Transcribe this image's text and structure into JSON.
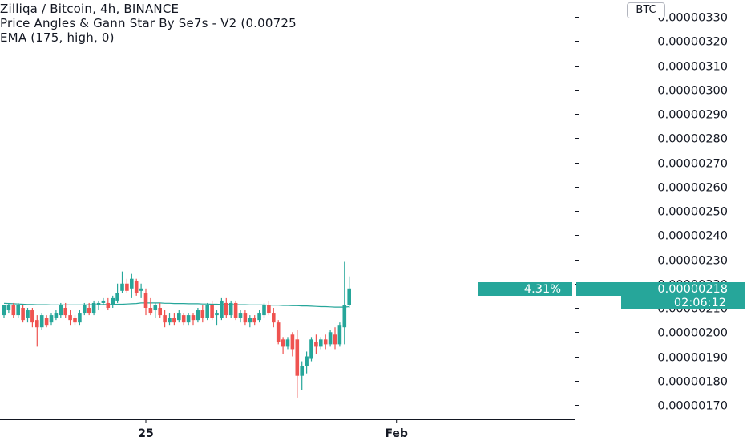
{
  "legend": {
    "line1": "Zilliqa / Bitcoin, 4h, BINANCE",
    "line2": "Price Angles & Gann Star By Se7s - V2 (0.00725",
    "line3": "EMA (175, high, 0)"
  },
  "currency_button": "BTC",
  "colors": {
    "up": "#26a69a",
    "down": "#ef5350",
    "ema": "#26a69a",
    "axis_text": "#131722",
    "price_tag": "#26a69a",
    "price_line": "#26a69a"
  },
  "chart_data": {
    "type": "candlestick",
    "ylim": [
      1.65e-06,
      3.34e-06
    ],
    "y_ticks": [
      "0.00000170",
      "0.00000180",
      "0.00000190",
      "0.00000200",
      "0.00000210",
      "0.00000220",
      "0.00000230",
      "0.00000240",
      "0.00000250",
      "0.00000260",
      "0.00000270",
      "0.00000280",
      "0.00000290",
      "0.00000300",
      "0.00000310",
      "0.00000320",
      "0.00000330"
    ],
    "x_labels": [
      {
        "label": "25",
        "index": 30
      },
      {
        "label": "Feb",
        "index": 83
      }
    ],
    "current_price": {
      "label": "0.00000218",
      "value": 2.18e-06,
      "change": "4.31%",
      "countdown": "02:06:12"
    },
    "ema_values": [
      2.119,
      2.118,
      2.117,
      2.116,
      2.115,
      2.114,
      2.114,
      2.113,
      2.113,
      2.113,
      2.112,
      2.112,
      2.112,
      2.112,
      2.112,
      2.112,
      2.112,
      2.112,
      2.113,
      2.113,
      2.113,
      2.114,
      2.114,
      2.114,
      2.115,
      2.115,
      2.116,
      2.117,
      2.118,
      2.12,
      2.12,
      2.12,
      2.12,
      2.12,
      2.119,
      2.119,
      2.118,
      2.118,
      2.118,
      2.117,
      2.117,
      2.117,
      2.116,
      2.116,
      2.115,
      2.115,
      2.114,
      2.114,
      2.114,
      2.113,
      2.113,
      2.113,
      2.112,
      2.112,
      2.112,
      2.112,
      2.111,
      2.111,
      2.111,
      2.11,
      2.11,
      2.109,
      2.109,
      2.108,
      2.108,
      2.107,
      2.106,
      2.105,
      2.105,
      2.104,
      2.103,
      2.103,
      2.103,
      2.105
    ],
    "candles": [
      {
        "o": 2.07,
        "h": 2.11,
        "l": 2.06,
        "c": 2.11
      },
      {
        "o": 2.09,
        "h": 2.12,
        "l": 2.08,
        "c": 2.11
      },
      {
        "o": 2.11,
        "h": 2.12,
        "l": 2.06,
        "c": 2.07
      },
      {
        "o": 2.07,
        "h": 2.12,
        "l": 2.06,
        "c": 2.11
      },
      {
        "o": 2.1,
        "h": 2.11,
        "l": 2.04,
        "c": 2.05
      },
      {
        "o": 2.06,
        "h": 2.1,
        "l": 2.04,
        "c": 2.09
      },
      {
        "o": 2.09,
        "h": 2.1,
        "l": 2.02,
        "c": 2.04
      },
      {
        "o": 2.05,
        "h": 2.07,
        "l": 1.94,
        "c": 2.02
      },
      {
        "o": 2.02,
        "h": 2.08,
        "l": 2.01,
        "c": 2.07
      },
      {
        "o": 2.06,
        "h": 2.07,
        "l": 2.02,
        "c": 2.03
      },
      {
        "o": 2.04,
        "h": 2.08,
        "l": 2.03,
        "c": 2.07
      },
      {
        "o": 2.06,
        "h": 2.09,
        "l": 2.05,
        "c": 2.08
      },
      {
        "o": 2.07,
        "h": 2.12,
        "l": 2.06,
        "c": 2.11
      },
      {
        "o": 2.1,
        "h": 2.12,
        "l": 2.06,
        "c": 2.07
      },
      {
        "o": 2.07,
        "h": 2.09,
        "l": 2.03,
        "c": 2.05
      },
      {
        "o": 2.06,
        "h": 2.07,
        "l": 2.03,
        "c": 2.04
      },
      {
        "o": 2.04,
        "h": 2.09,
        "l": 2.03,
        "c": 2.08
      },
      {
        "o": 2.08,
        "h": 2.12,
        "l": 2.07,
        "c": 2.11
      },
      {
        "o": 2.1,
        "h": 2.12,
        "l": 2.07,
        "c": 2.08
      },
      {
        "o": 2.08,
        "h": 2.13,
        "l": 2.07,
        "c": 2.12
      },
      {
        "o": 2.11,
        "h": 2.13,
        "l": 2.09,
        "c": 2.12
      },
      {
        "o": 2.12,
        "h": 2.14,
        "l": 2.11,
        "c": 2.13
      },
      {
        "o": 2.12,
        "h": 2.14,
        "l": 2.09,
        "c": 2.1
      },
      {
        "o": 2.11,
        "h": 2.15,
        "l": 2.1,
        "c": 2.14
      },
      {
        "o": 2.13,
        "h": 2.2,
        "l": 2.12,
        "c": 2.16
      },
      {
        "o": 2.17,
        "h": 2.25,
        "l": 2.16,
        "c": 2.2
      },
      {
        "o": 2.2,
        "h": 2.22,
        "l": 2.16,
        "c": 2.17
      },
      {
        "o": 2.18,
        "h": 2.24,
        "l": 2.14,
        "c": 2.22
      },
      {
        "o": 2.21,
        "h": 2.22,
        "l": 2.15,
        "c": 2.16
      },
      {
        "o": 2.17,
        "h": 2.2,
        "l": 2.14,
        "c": 2.18
      },
      {
        "o": 2.16,
        "h": 2.18,
        "l": 2.07,
        "c": 2.1
      },
      {
        "o": 2.1,
        "h": 2.14,
        "l": 2.07,
        "c": 2.08
      },
      {
        "o": 2.09,
        "h": 2.12,
        "l": 2.06,
        "c": 2.11
      },
      {
        "o": 2.1,
        "h": 2.12,
        "l": 2.06,
        "c": 2.07
      },
      {
        "o": 2.07,
        "h": 2.09,
        "l": 2.02,
        "c": 2.04
      },
      {
        "o": 2.04,
        "h": 2.08,
        "l": 2.03,
        "c": 2.06
      },
      {
        "o": 2.06,
        "h": 2.08,
        "l": 2.03,
        "c": 2.04
      },
      {
        "o": 2.05,
        "h": 2.09,
        "l": 2.04,
        "c": 2.08
      },
      {
        "o": 2.07,
        "h": 2.08,
        "l": 2.03,
        "c": 2.04
      },
      {
        "o": 2.04,
        "h": 2.08,
        "l": 2.03,
        "c": 2.07
      },
      {
        "o": 2.07,
        "h": 2.08,
        "l": 2.03,
        "c": 2.05
      },
      {
        "o": 2.05,
        "h": 2.1,
        "l": 2.04,
        "c": 2.09
      },
      {
        "o": 2.09,
        "h": 2.11,
        "l": 2.04,
        "c": 2.06
      },
      {
        "o": 2.06,
        "h": 2.12,
        "l": 2.05,
        "c": 2.11
      },
      {
        "o": 2.11,
        "h": 2.13,
        "l": 2.05,
        "c": 2.06
      },
      {
        "o": 2.07,
        "h": 2.09,
        "l": 2.03,
        "c": 2.08
      },
      {
        "o": 2.06,
        "h": 2.14,
        "l": 2.05,
        "c": 2.13
      },
      {
        "o": 2.12,
        "h": 2.14,
        "l": 2.06,
        "c": 2.07
      },
      {
        "o": 2.07,
        "h": 2.13,
        "l": 2.06,
        "c": 2.12
      },
      {
        "o": 2.12,
        "h": 2.13,
        "l": 2.05,
        "c": 2.06
      },
      {
        "o": 2.06,
        "h": 2.09,
        "l": 2.04,
        "c": 2.08
      },
      {
        "o": 2.08,
        "h": 2.09,
        "l": 2.03,
        "c": 2.04
      },
      {
        "o": 2.04,
        "h": 2.07,
        "l": 2.02,
        "c": 2.06
      },
      {
        "o": 2.06,
        "h": 2.07,
        "l": 2.03,
        "c": 2.04
      },
      {
        "o": 2.05,
        "h": 2.09,
        "l": 2.04,
        "c": 2.08
      },
      {
        "o": 2.07,
        "h": 2.12,
        "l": 2.06,
        "c": 2.11
      },
      {
        "o": 2.11,
        "h": 2.13,
        "l": 2.07,
        "c": 2.08
      },
      {
        "o": 2.08,
        "h": 2.1,
        "l": 2.02,
        "c": 2.04
      },
      {
        "o": 2.04,
        "h": 2.05,
        "l": 1.95,
        "c": 1.96
      },
      {
        "o": 1.97,
        "h": 1.98,
        "l": 1.91,
        "c": 1.94
      },
      {
        "o": 1.94,
        "h": 1.98,
        "l": 1.93,
        "c": 1.97
      },
      {
        "o": 1.99,
        "h": 2.0,
        "l": 1.9,
        "c": 1.93
      },
      {
        "o": 1.97,
        "h": 2.01,
        "l": 1.73,
        "c": 1.82
      },
      {
        "o": 1.82,
        "h": 1.88,
        "l": 1.76,
        "c": 1.86
      },
      {
        "o": 1.86,
        "h": 1.92,
        "l": 1.83,
        "c": 1.9
      },
      {
        "o": 1.89,
        "h": 1.98,
        "l": 1.88,
        "c": 1.97
      },
      {
        "o": 1.96,
        "h": 1.99,
        "l": 1.91,
        "c": 1.94
      },
      {
        "o": 1.94,
        "h": 1.98,
        "l": 1.93,
        "c": 1.97
      },
      {
        "o": 1.97,
        "h": 1.99,
        "l": 1.93,
        "c": 1.95
      },
      {
        "o": 1.95,
        "h": 2.01,
        "l": 1.94,
        "c": 2.0
      },
      {
        "o": 1.99,
        "h": 2.02,
        "l": 1.93,
        "c": 1.95
      },
      {
        "o": 1.95,
        "h": 2.04,
        "l": 1.94,
        "c": 2.03
      },
      {
        "o": 2.02,
        "h": 2.29,
        "l": 1.95,
        "c": 2.11
      },
      {
        "o": 2.11,
        "h": 2.23,
        "l": 2.1,
        "c": 2.18
      }
    ]
  }
}
